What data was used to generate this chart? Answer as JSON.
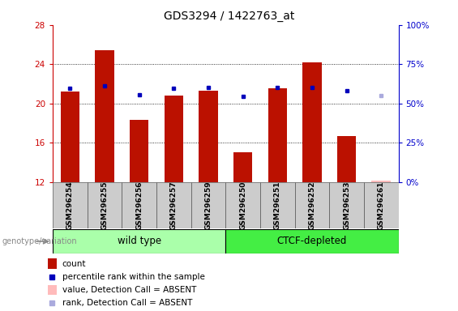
{
  "title": "GDS3294 / 1422763_at",
  "samples": [
    "GSM296254",
    "GSM296255",
    "GSM296256",
    "GSM296257",
    "GSM296259",
    "GSM296250",
    "GSM296251",
    "GSM296252",
    "GSM296253",
    "GSM296261"
  ],
  "bar_values": [
    21.2,
    25.4,
    18.3,
    20.8,
    21.3,
    15.0,
    21.5,
    24.2,
    16.7,
    null
  ],
  "bar_absent_value": 12.1,
  "dot_values": [
    21.5,
    21.8,
    20.9,
    21.5,
    21.6,
    20.7,
    21.6,
    21.6,
    21.3,
    20.8
  ],
  "dot_absent": [
    false,
    false,
    false,
    false,
    false,
    false,
    false,
    false,
    false,
    true
  ],
  "bar_absent": [
    false,
    false,
    false,
    false,
    false,
    false,
    false,
    false,
    false,
    true
  ],
  "ylim": [
    12,
    28
  ],
  "yticks": [
    12,
    16,
    20,
    24,
    28
  ],
  "y2lim": [
    0,
    100
  ],
  "y2ticks": [
    0,
    25,
    50,
    75,
    100
  ],
  "y2ticklabels": [
    "0%",
    "25%",
    "50%",
    "75%",
    "100%"
  ],
  "groups": [
    {
      "label": "wild type",
      "indices": [
        0,
        1,
        2,
        3,
        4
      ],
      "color": "#aaffaa"
    },
    {
      "label": "CTCF-depleted",
      "indices": [
        5,
        6,
        7,
        8,
        9
      ],
      "color": "#44ee44"
    }
  ],
  "bar_color": "#bb1100",
  "bar_absent_color": "#ffbbbb",
  "dot_color": "#0000bb",
  "dot_absent_color": "#aaaadd",
  "bg_color": "#cccccc",
  "ylabel_color": "#cc0000",
  "y2label_color": "#0000cc",
  "legend": [
    {
      "label": "count",
      "color": "#bb1100",
      "type": "bar"
    },
    {
      "label": "percentile rank within the sample",
      "color": "#0000bb",
      "type": "dot"
    },
    {
      "label": "value, Detection Call = ABSENT",
      "color": "#ffbbbb",
      "type": "bar"
    },
    {
      "label": "rank, Detection Call = ABSENT",
      "color": "#aaaadd",
      "type": "dot"
    }
  ],
  "genotype_label": "genotype/variation",
  "bar_width": 0.55
}
